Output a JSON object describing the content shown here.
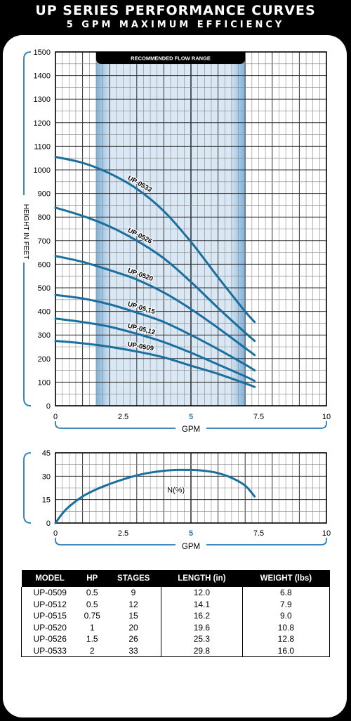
{
  "header": {
    "title": "UP SERIES PERFORMANCE CURVES",
    "subtitle": "5 GPM MAXIMUM EFFICIENCY"
  },
  "colors": {
    "curve": "#1a6f9e",
    "band": "#7fb0d8",
    "band_light": "#d9e8f4",
    "grid": "#555555",
    "accent": "#2a7ab5"
  },
  "chart_data": [
    {
      "type": "line",
      "x_label": "GPM",
      "y_label": "HEIGHT IN FEET",
      "x_ticks": [
        "0",
        "2.5",
        "5",
        "7.5",
        "10"
      ],
      "highlight_tick": "5",
      "y_ticks": [
        "0",
        "100",
        "200",
        "300",
        "400",
        "500",
        "600",
        "700",
        "800",
        "900",
        "1000",
        "1100",
        "1200",
        "1300",
        "1400",
        "1500"
      ],
      "xlim": [
        0,
        10
      ],
      "ylim": [
        0,
        1500
      ],
      "grid": true,
      "band_label": "RECOMMENDED FLOW RANGE",
      "band_range": [
        1.5,
        7
      ],
      "series": [
        {
          "name": "UP-0533",
          "x": [
            0,
            1,
            2,
            3,
            4,
            5,
            6,
            7,
            7.35
          ],
          "y": [
            1055,
            1030,
            985,
            920,
            825,
            695,
            545,
            400,
            355
          ]
        },
        {
          "name": "UP-0526",
          "x": [
            0,
            1,
            2,
            3,
            4,
            5,
            6,
            7,
            7.35
          ],
          "y": [
            840,
            805,
            760,
            700,
            625,
            525,
            415,
            310,
            275
          ]
        },
        {
          "name": "UP-0520",
          "x": [
            0,
            1,
            2,
            3,
            4,
            5,
            6,
            7,
            7.35
          ],
          "y": [
            635,
            610,
            575,
            535,
            480,
            410,
            330,
            245,
            215
          ]
        },
        {
          "name": "UP-05,15",
          "x": [
            0,
            1,
            2,
            3,
            4,
            5,
            6,
            7,
            7.35
          ],
          "y": [
            470,
            455,
            430,
            395,
            355,
            300,
            240,
            175,
            150
          ]
        },
        {
          "name": "UP-05,12",
          "x": [
            0,
            1,
            2,
            3,
            4,
            5,
            6,
            7,
            7.35
          ],
          "y": [
            370,
            355,
            335,
            305,
            270,
            225,
            175,
            125,
            105
          ]
        },
        {
          "name": "UP-0509",
          "x": [
            0,
            1,
            2,
            3,
            4,
            5,
            6,
            7,
            7.35
          ],
          "y": [
            275,
            265,
            250,
            230,
            205,
            170,
            135,
            95,
            80
          ]
        }
      ]
    },
    {
      "type": "line",
      "x_label": "GPM",
      "x_ticks": [
        "0",
        "2.5",
        "5",
        "7.5",
        "10"
      ],
      "highlight_tick": "5",
      "y_ticks": [
        "0",
        "15",
        "30",
        "45"
      ],
      "xlim": [
        0,
        10
      ],
      "ylim": [
        0,
        45
      ],
      "grid": true,
      "series": [
        {
          "name": "N(%)",
          "x": [
            0,
            0.25,
            0.5,
            1,
            1.5,
            2,
            2.5,
            3,
            3.5,
            4,
            4.5,
            5,
            5.5,
            6,
            6.5,
            7,
            7.35
          ],
          "y": [
            0,
            6,
            10.5,
            17,
            21.5,
            25,
            28,
            30.5,
            32.3,
            33.5,
            34,
            34,
            33.5,
            32,
            29,
            24,
            17
          ]
        }
      ]
    }
  ],
  "table": {
    "columns": [
      "MODEL",
      "HP",
      "STAGES",
      "LENGTH (in)",
      "WEIGHT (lbs)"
    ],
    "rows": [
      [
        "UP-0509",
        "0.5",
        "9",
        "12.0",
        "6.8"
      ],
      [
        "UP-0512",
        "0.5",
        "12",
        "14.1",
        "7.9"
      ],
      [
        "UP-0515",
        "0.75",
        "15",
        "16.2",
        "9.0"
      ],
      [
        "UP-0520",
        "1",
        "20",
        "19.6",
        "10.8"
      ],
      [
        "UP-0526",
        "1.5",
        "26",
        "25.3",
        "12.8"
      ],
      [
        "UP-0533",
        "2",
        "33",
        "29.8",
        "16.0"
      ]
    ]
  }
}
